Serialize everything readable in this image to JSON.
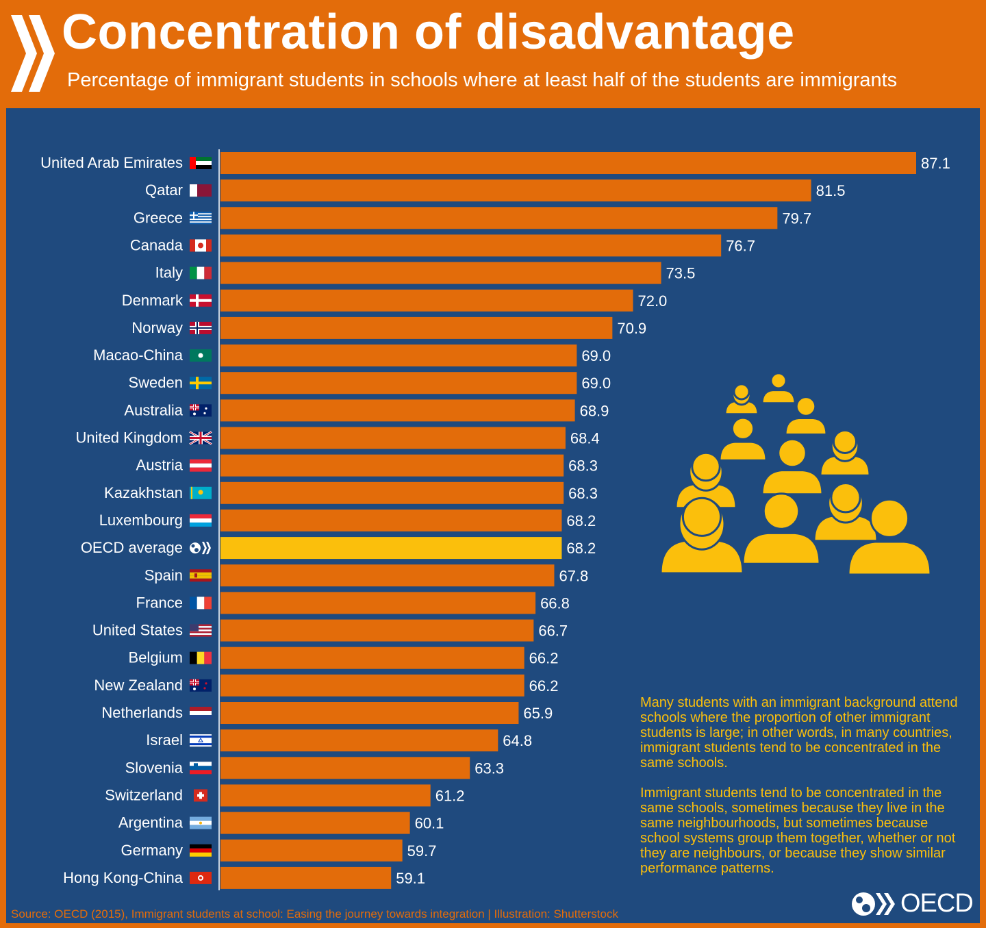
{
  "header": {
    "title": "Concentration of disadvantage",
    "subtitle": "Percentage of immigrant students in schools where at least half of the students are immigrants"
  },
  "colors": {
    "header_bg": "#e36c0a",
    "panel_bg": "#1f4a7e",
    "bar": "#e36c0a",
    "highlight_bar": "#fbbf0c",
    "note_text": "#fbbf0c"
  },
  "chart_data": {
    "type": "bar",
    "orientation": "horizontal",
    "categories": [
      "United Arab Emirates",
      "Qatar",
      "Greece",
      "Canada",
      "Italy",
      "Denmark",
      "Norway",
      "Macao-China",
      "Sweden",
      "Australia",
      "United Kingdom",
      "Austria",
      "Kazakhstan",
      "Luxembourg",
      "OECD average",
      "Spain",
      "France",
      "United States",
      "Belgium",
      "New Zealand",
      "Netherlands",
      "Israel",
      "Slovenia",
      "Switzerland",
      "Argentina",
      "Germany",
      "Hong Kong-China"
    ],
    "values": [
      87.1,
      81.5,
      79.7,
      76.7,
      73.5,
      72.0,
      70.9,
      69.0,
      69.0,
      68.9,
      68.4,
      68.3,
      68.3,
      68.2,
      68.2,
      67.8,
      66.8,
      66.7,
      66.2,
      66.2,
      65.9,
      64.8,
      63.3,
      61.2,
      60.1,
      59.7,
      59.1
    ],
    "value_labels": [
      "87.1",
      "81.5",
      "79.7",
      "76.7",
      "73.5",
      "72.0",
      "70.9",
      "69.0",
      "69.0",
      "68.9",
      "68.4",
      "68.3",
      "68.3",
      "68.2",
      "68.2",
      "67.8",
      "66.8",
      "66.7",
      "66.2",
      "66.2",
      "65.9",
      "64.8",
      "63.3",
      "61.2",
      "60.1",
      "59.7",
      "59.1"
    ],
    "highlight": "OECD average",
    "xlim": [
      50,
      90
    ],
    "grid": false,
    "legend": "none"
  },
  "flags": [
    "uae-flag-icon",
    "qatar-flag-icon",
    "greece-flag-icon",
    "canada-flag-icon",
    "italy-flag-icon",
    "denmark-flag-icon",
    "norway-flag-icon",
    "macao-flag-icon",
    "sweden-flag-icon",
    "australia-flag-icon",
    "uk-flag-icon",
    "austria-flag-icon",
    "kazakhstan-flag-icon",
    "luxembourg-flag-icon",
    "oecd-logo-icon",
    "spain-flag-icon",
    "france-flag-icon",
    "usa-flag-icon",
    "belgium-flag-icon",
    "new-zealand-flag-icon",
    "netherlands-flag-icon",
    "israel-flag-icon",
    "slovenia-flag-icon",
    "switzerland-flag-icon",
    "argentina-flag-icon",
    "germany-flag-icon",
    "hong-kong-flag-icon"
  ],
  "notes": {
    "paragraph1": "Many students with an immigrant background attend schools where the proportion of other immigrant students is large; in other words, in many countries, immigrant students tend to be concentrated in the same schools.",
    "paragraph2": "Immigrant students tend to be concentrated in the same schools, sometimes because they live in the same neighbourhoods, but sometimes because school systems group them together, whether or not they are neighbours, or because they show similar performance patterns."
  },
  "illustration": "people-group-illustration",
  "footer": {
    "source": "Source: OECD (2015), Immigrant students at school: Easing the journey towards integration | Illustration: Shutterstock",
    "logo_text": "OECD"
  }
}
